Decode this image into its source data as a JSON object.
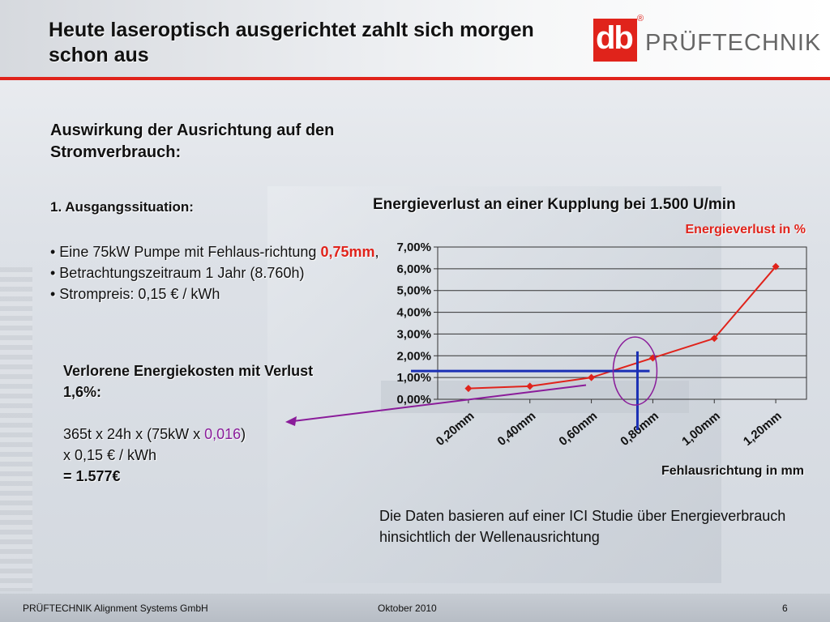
{
  "header": {
    "title": "Heute laseroptisch ausgerichtet zahlt sich morgen schon aus",
    "logo_letters": "db",
    "logo_reg": "®",
    "logo_text": "PRÜFTECHNIK"
  },
  "colors": {
    "brand_red": "#e0231b",
    "purple": "#8a1c9a",
    "blue": "#1a2fb5"
  },
  "section": {
    "title": "Auswirkung der Ausrichtung auf den Stromverbrauch:",
    "subtitle": "1. Ausgangssituation:"
  },
  "bullets": {
    "b1_prefix": "• Eine 75kW  Pumpe mit Fehlaus-richtung ",
    "b1_value": "0,75mm",
    "b1_suffix": ",",
    "b2": "• Betrachtungszeitraum 1 Jahr (8.760h)",
    "b3": "• Strompreis: 0,15 € / kWh"
  },
  "calc": {
    "heading": "Verlorene Energiekosten mit Verlust 1,6%:",
    "line1_prefix": "365t x 24h x (75kW x ",
    "line1_value": "0,016",
    "line1_suffix": ")",
    "line2": "x 0,15 € / kWh",
    "result": "= 1.577€"
  },
  "chart_data": {
    "type": "line",
    "title": "Energieverlust an einer Kupplung bei 1.500 U/min",
    "xlabel": "Fehlausrichtung in mm",
    "ylabel": "",
    "categories": [
      "0,20mm",
      "0,40mm",
      "0,60mm",
      "0,80mm",
      "1,00mm",
      "1,20mm"
    ],
    "yticks": [
      "0,00%",
      "1,00%",
      "2,00%",
      "3,00%",
      "4,00%",
      "5,00%",
      "6,00%",
      "7,00%"
    ],
    "ylim": [
      0,
      7
    ],
    "series": [
      {
        "name": "Energieverlust in %",
        "points": [
          [
            0.2,
            0.5
          ],
          [
            0.4,
            0.6
          ],
          [
            0.6,
            1.0
          ],
          [
            0.8,
            1.9
          ],
          [
            1.0,
            2.8
          ],
          [
            1.2,
            6.1
          ]
        ]
      }
    ],
    "legend": "top-right",
    "annotation_x": 0.75,
    "annotation_y": 1.3
  },
  "note": "Die Daten basieren auf einer ICI Studie über Energieverbrauch hinsichtlich der Wellenausrichtung",
  "footer": {
    "company": "PRÜFTECHNIK Alignment Systems GmbH",
    "date": "Oktober 2010",
    "page": "6"
  }
}
